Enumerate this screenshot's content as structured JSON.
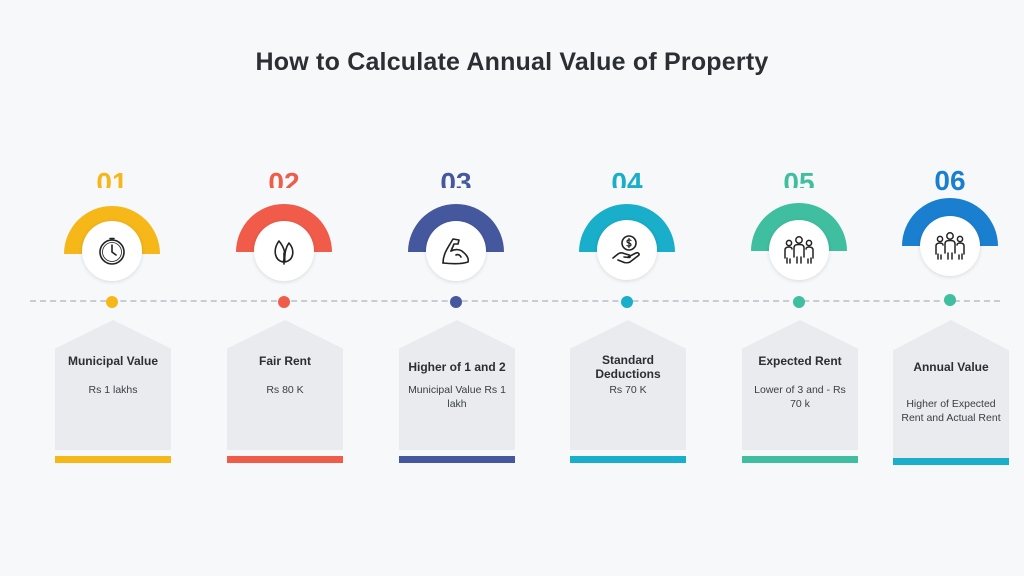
{
  "title": "How to Calculate Annual Value of Property",
  "steps": [
    {
      "number": "01",
      "title": "Municipal Value",
      "text": "Rs 1 lakhs",
      "color": "#f6b719",
      "icon": "clock-icon"
    },
    {
      "number": "02",
      "title": "Fair Rent",
      "text": "Rs 80 K",
      "color": "#f15c4a",
      "icon": "leaf-icon"
    },
    {
      "number": "03",
      "title": "Higher of 1 and 2",
      "text": "Municipal Value Rs 1 lakh",
      "color": "#45589e",
      "icon": "muscle-arm-icon"
    },
    {
      "number": "04",
      "title": "Standard Deductions",
      "text": "Rs 70 K",
      "color": "#19aec9",
      "icon": "money-hand-icon"
    },
    {
      "number": "05",
      "title": "Expected Rent",
      "text": "Lower of 3 and - Rs 70 k",
      "color": "#3fbf9f",
      "icon": "group-icon"
    },
    {
      "number": "06",
      "title": "Annual Value",
      "text": "Higher of Expected Rent and Actual Rent",
      "color": "#1b7fd0",
      "icon": "people-icon"
    }
  ]
}
